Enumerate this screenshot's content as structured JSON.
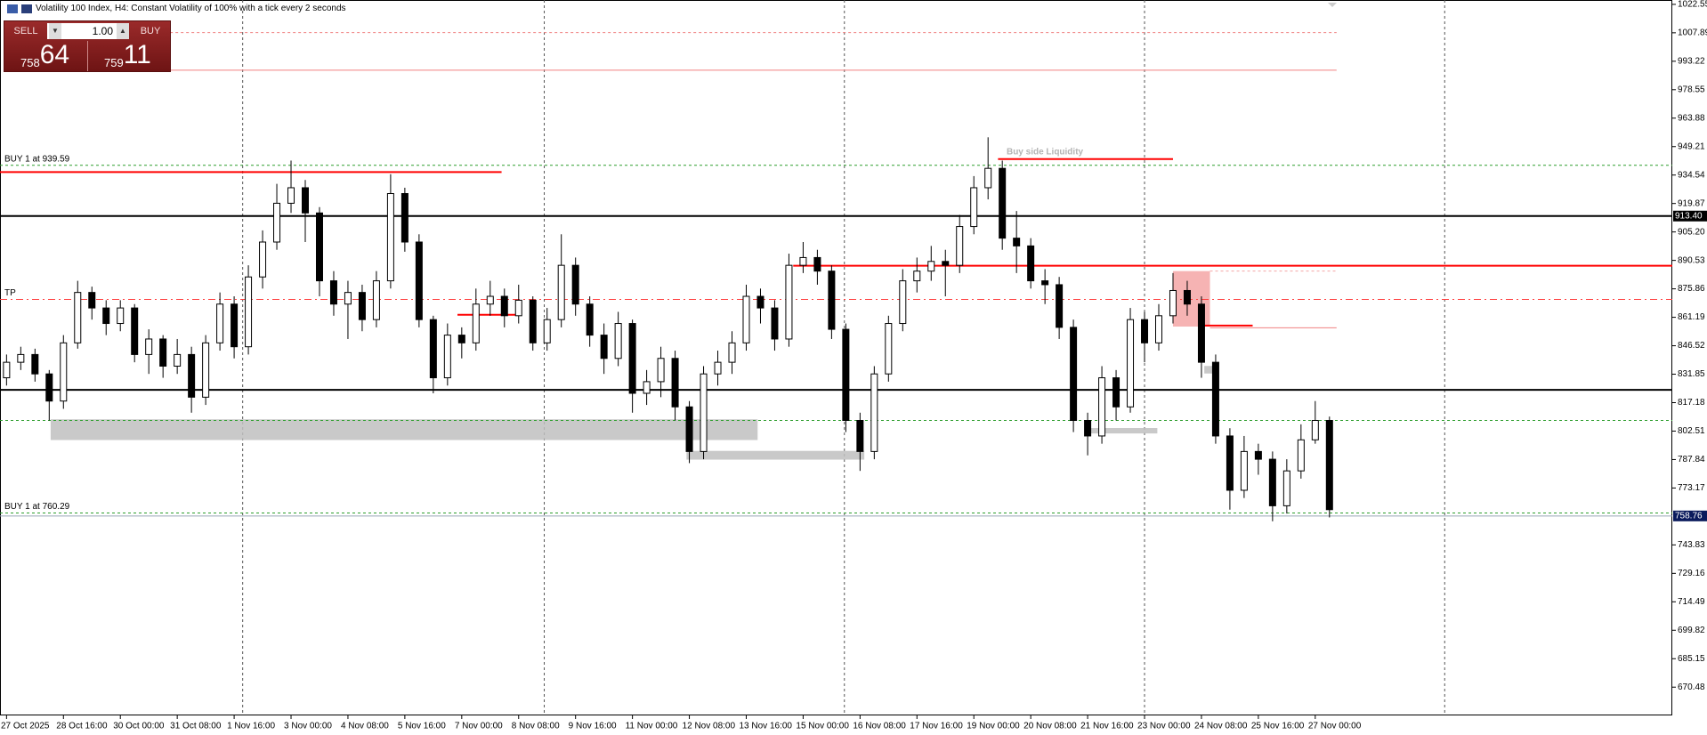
{
  "header": {
    "title": "Volatility 100 Index, H4:  Constant Volatility of 100% with a tick every 2 seconds"
  },
  "trade_panel": {
    "sell": "SELL",
    "buy": "BUY",
    "lot": "1.00",
    "sell_price_big": "758",
    "sell_price_small": "64",
    "buy_price_big": "759",
    "buy_price_small": "11"
  },
  "chart_data": {
    "type": "candlestick",
    "categories": [
      "27 Oct 2025",
      null,
      null,
      null,
      "28 Oct 16:00",
      null,
      null,
      null,
      "30 Oct 00:00",
      null,
      null,
      null,
      "31 Oct 08:00",
      null,
      null,
      null,
      "1 Nov 16:00",
      null,
      null,
      null,
      "3 Nov 00:00",
      null,
      null,
      null,
      "4 Nov 08:00",
      null,
      null,
      null,
      "5 Nov 16:00",
      null,
      null,
      null,
      "7 Nov 00:00",
      null,
      null,
      null,
      "8 Nov 08:00",
      null,
      null,
      null,
      "9 Nov 16:00",
      null,
      null,
      null,
      "11 Nov 00:00",
      null,
      null,
      null,
      "12 Nov 08:00",
      null,
      null,
      null,
      "13 Nov 16:00",
      null,
      null,
      null,
      "15 Nov 00:00",
      null,
      null,
      null,
      "16 Nov 08:00",
      null,
      null,
      null,
      "17 Nov 16:00",
      null,
      null,
      null,
      "19 Nov 00:00",
      null,
      null,
      null,
      "20 Nov 08:00",
      null,
      null,
      null,
      "21 Nov 16:00",
      null,
      null,
      null,
      "23 Nov 00:00",
      null,
      null,
      null,
      "24 Nov 08:00",
      null,
      null,
      null,
      "25 Nov 16:00",
      null,
      null,
      null,
      "27 Nov 00:00",
      null
    ],
    "open": [
      830,
      838,
      842,
      832,
      818,
      848,
      874,
      866,
      858,
      866,
      842,
      850,
      836,
      842,
      820,
      848,
      868,
      846,
      882,
      900,
      920,
      928,
      915,
      880,
      868,
      874,
      860,
      880,
      925,
      900,
      860,
      830,
      852,
      848,
      868,
      872,
      862,
      870,
      848,
      860,
      888,
      868,
      852,
      840,
      858,
      822,
      828,
      840,
      815,
      792,
      832,
      838,
      848,
      872,
      866,
      850,
      888,
      892,
      885,
      855,
      808,
      792,
      832,
      858,
      880,
      885,
      890,
      888,
      908,
      928,
      938,
      902,
      898,
      880,
      878,
      856,
      808,
      800,
      830,
      815,
      860,
      848,
      862,
      875,
      868,
      838,
      800,
      772,
      792,
      788,
      764,
      782,
      798,
      808
    ],
    "high": [
      842,
      846,
      845,
      834,
      852,
      880,
      877,
      870,
      870,
      868,
      855,
      852,
      850,
      846,
      852,
      874,
      872,
      888,
      906,
      930,
      942,
      932,
      918,
      885,
      880,
      878,
      885,
      935,
      928,
      904,
      862,
      858,
      856,
      876,
      880,
      876,
      878,
      872,
      866,
      904,
      892,
      872,
      858,
      864,
      860,
      834,
      846,
      844,
      818,
      836,
      844,
      854,
      878,
      876,
      870,
      894,
      900,
      896,
      888,
      858,
      812,
      836,
      862,
      886,
      892,
      898,
      896,
      914,
      934,
      954,
      942,
      916,
      902,
      886,
      882,
      860,
      812,
      836,
      834,
      866,
      864,
      868,
      884,
      880,
      872,
      842,
      804,
      800,
      796,
      792,
      788,
      806,
      818,
      810
    ],
    "low": [
      826,
      834,
      828,
      808,
      814,
      845,
      860,
      852,
      854,
      838,
      832,
      830,
      832,
      812,
      816,
      844,
      840,
      842,
      876,
      896,
      915,
      900,
      872,
      862,
      850,
      854,
      856,
      876,
      895,
      856,
      822,
      826,
      840,
      844,
      862,
      856,
      858,
      844,
      844,
      856,
      862,
      846,
      832,
      836,
      812,
      816,
      820,
      808,
      786,
      788,
      826,
      832,
      844,
      858,
      844,
      846,
      884,
      878,
      850,
      802,
      782,
      788,
      828,
      854,
      874,
      880,
      872,
      884,
      904,
      922,
      896,
      884,
      876,
      868,
      850,
      802,
      790,
      796,
      808,
      812,
      838,
      844,
      858,
      862,
      830,
      796,
      762,
      768,
      780,
      756,
      760,
      778,
      796,
      758
    ],
    "close": [
      838,
      842,
      832,
      818,
      848,
      874,
      866,
      858,
      866,
      842,
      850,
      836,
      842,
      820,
      848,
      868,
      846,
      882,
      900,
      920,
      928,
      915,
      880,
      868,
      874,
      860,
      880,
      925,
      900,
      860,
      830,
      852,
      848,
      868,
      872,
      862,
      870,
      848,
      860,
      888,
      868,
      852,
      840,
      858,
      822,
      828,
      840,
      815,
      792,
      832,
      838,
      848,
      872,
      866,
      850,
      888,
      892,
      885,
      855,
      808,
      792,
      832,
      858,
      880,
      885,
      890,
      888,
      908,
      928,
      938,
      902,
      898,
      880,
      878,
      856,
      808,
      800,
      830,
      815,
      860,
      848,
      862,
      875,
      868,
      838,
      800,
      772,
      792,
      788,
      764,
      782,
      798,
      808,
      762
    ],
    "bull_color": "#ffffff",
    "bear_color": "#000000",
    "xlim": [
      -0.46,
      117.1
    ],
    "xgrid": [
      16.6,
      37.8,
      58.9,
      80,
      101.1
    ],
    "ylim": [
      655.9,
      1024.8
    ],
    "yticks": [
      1022.55,
      1007.89,
      993.22,
      978.55,
      963.88,
      949.21,
      934.54,
      919.87,
      {
        "value": 905.2,
        "label": "905.20"
      },
      890.53,
      875.86,
      861.19,
      846.52,
      831.85,
      817.18,
      802.51,
      787.84,
      773.17,
      743.83,
      729.16,
      714.49,
      699.82,
      685.15,
      670.48
    ],
    "levels": [
      {
        "value": 1008.0,
        "color": "#f08080",
        "style": "dashed",
        "from": 11.5,
        "to": 93.5
      },
      {
        "value": 988.6,
        "color": "#f08080",
        "style": "solid",
        "from": 11.5,
        "to": 93.5
      },
      {
        "value": 939.59,
        "color": "#2e9e2e",
        "style": "dashed",
        "name": "BUY 1 at 939.59"
      },
      {
        "value": 942.8,
        "color": "#ff0000",
        "style": "bold",
        "from": 69.7,
        "to": 82
      },
      {
        "value": 936.1,
        "color": "#ff0000",
        "style": "bold",
        "from": -0.46,
        "to": 34.8
      },
      {
        "value": 913.4,
        "color": "#000000",
        "style": "bold",
        "badge": "913.40",
        "badge_color": "#000000"
      },
      {
        "value": 887.8,
        "color": "#ff0000",
        "style": "bold",
        "from": 55.3
      },
      {
        "value": 885.0,
        "color": "#f4a6a6",
        "style": "dashed",
        "from": 84.6,
        "to": 93.5
      },
      {
        "value": 870.4,
        "color": "#ff4040",
        "style": "dashdot",
        "name": "TP"
      },
      {
        "value": 862.5,
        "color": "#ff0000",
        "style": "bold",
        "from": 31.7,
        "to": 35.85
      },
      {
        "value": 856.9,
        "color": "#ff0000",
        "style": "bold",
        "from": 83.8,
        "to": 87.6
      },
      {
        "value": 855.8,
        "color": "#f08080",
        "style": "solid",
        "from": 84.6,
        "to": 93.5
      },
      {
        "value": 823.8,
        "color": "#000000",
        "style": "bold"
      },
      {
        "value": 808.0,
        "color": "#2e9e2e",
        "style": "dashed"
      },
      {
        "value": 760.29,
        "color": "#2e9e2e",
        "style": "dashed",
        "name": "BUY 1 at 760.29"
      },
      {
        "value": 758.76,
        "color": "#9aa6b8",
        "style": "solid",
        "badge": "758.76",
        "badge_color": "#0a1a5c"
      }
    ],
    "zones": [
      {
        "from": 3.1,
        "to": 52.8,
        "low": 797.9,
        "high": 808.6,
        "color": "#c0c0c0"
      },
      {
        "from": 47.8,
        "to": 60.3,
        "low": 787.8,
        "high": 792.3,
        "color": "#c0c0c0"
      },
      {
        "from": 76.2,
        "to": 80.9,
        "low": 801.3,
        "high": 804.1,
        "color": "#c0c0c0"
      },
      {
        "from": 84.2,
        "to": 84.9,
        "low": 832.2,
        "high": 836.1,
        "color": "#c0c0c0"
      },
      {
        "from": 82,
        "to": 84.6,
        "low": 856.4,
        "high": 885.0,
        "color": "#f4a6a6"
      }
    ],
    "annotations": [
      {
        "text": "Buy side Liquidity",
        "x": 70.3,
        "y": 946.5
      }
    ]
  }
}
